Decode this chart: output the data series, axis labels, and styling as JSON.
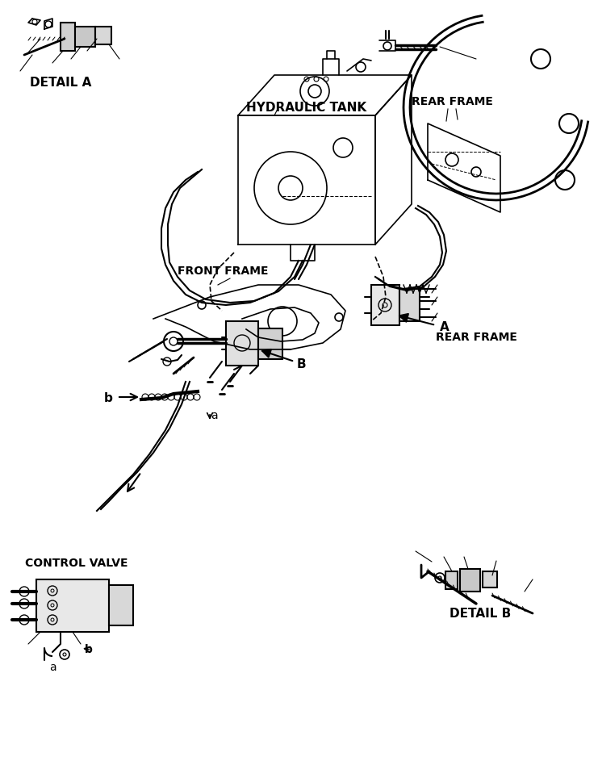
{
  "title": "",
  "background_color": "#ffffff",
  "line_color": "#000000",
  "labels": {
    "hydraulic_tank": "HYDRAULIC TANK",
    "rear_frame_top": "REAR FRAME",
    "front_frame": "FRONT FRAME",
    "rear_frame_mid": "REAR FRAME",
    "detail_a": "DETAIL A",
    "detail_b": "DETAIL B",
    "control_valve": "CONTROL VALVE",
    "arrow_a": "A",
    "arrow_b": "B",
    "point_a": "a",
    "point_b": "b",
    "point_a2": "a",
    "point_b2": "b"
  },
  "figsize": [
    7.41,
    9.43
  ],
  "dpi": 100
}
